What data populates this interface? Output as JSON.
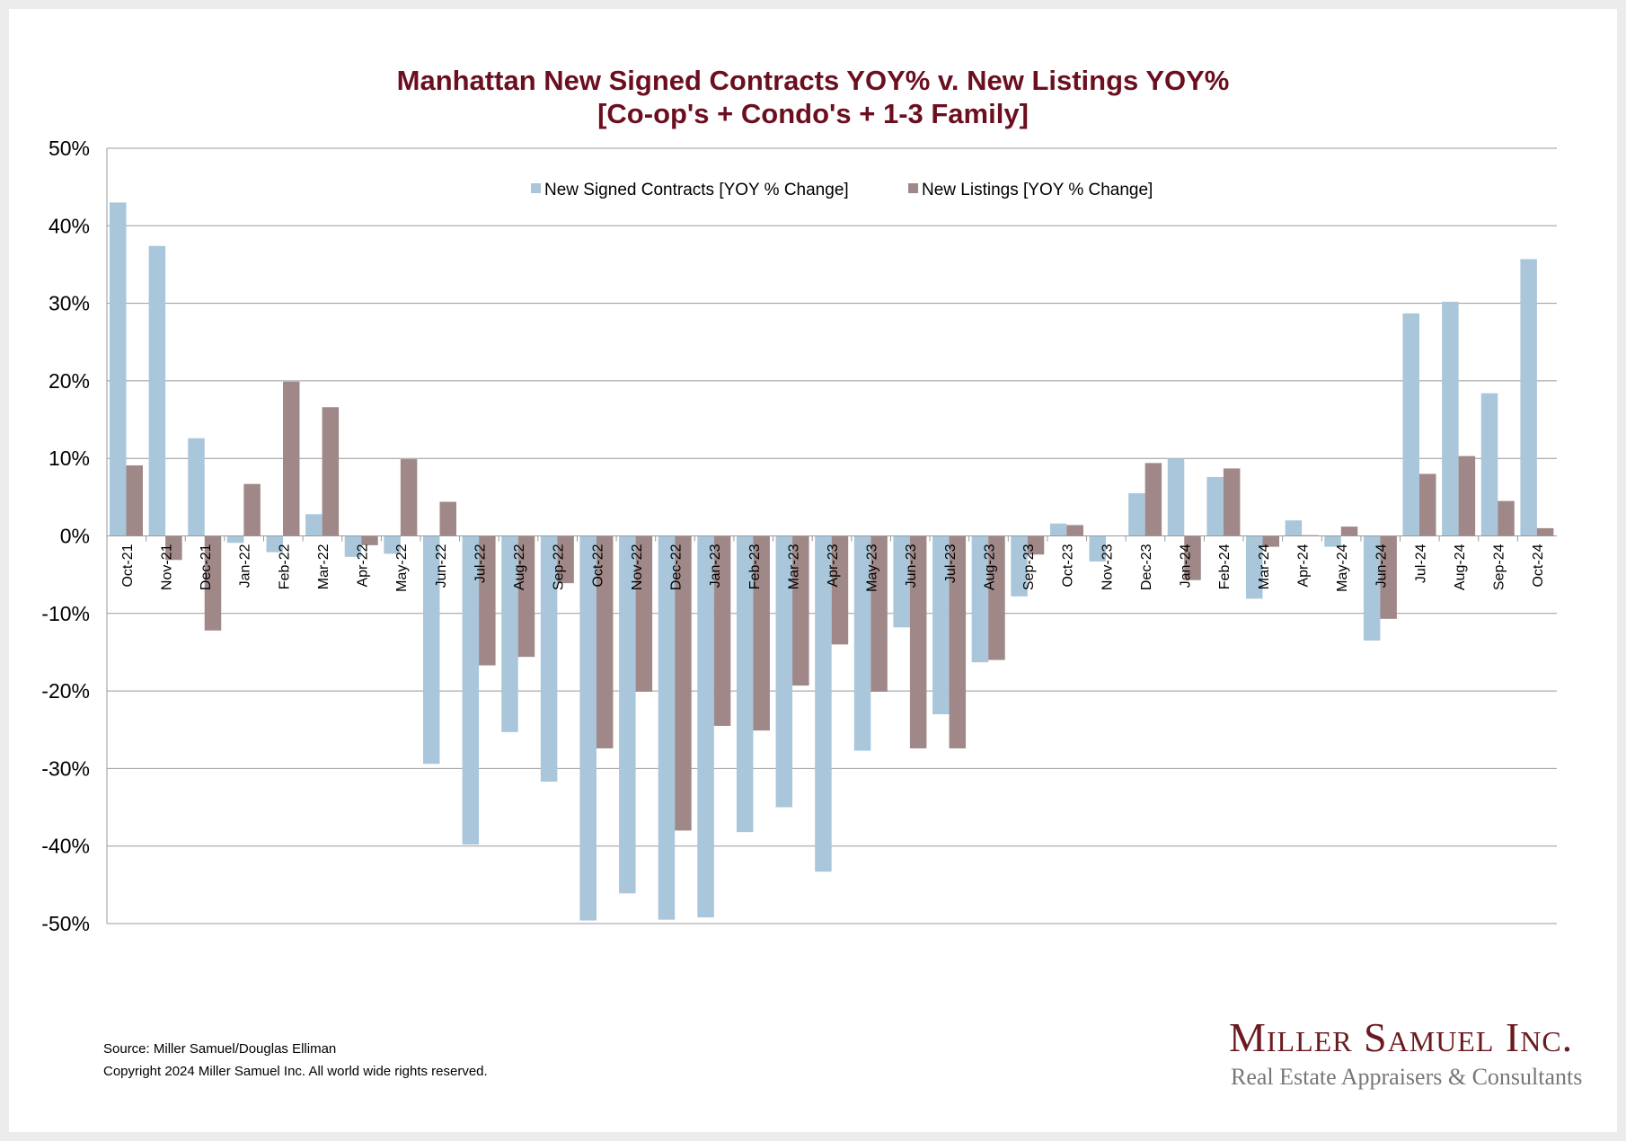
{
  "chart_data": {
    "type": "bar",
    "title": "Manhattan New Signed Contracts YOY% v. New Listings YOY%",
    "subtitle": "[Co-op's + Condo's + 1-3 Family]",
    "xlabel": "",
    "ylabel": "",
    "ylim": [
      -50,
      50
    ],
    "yticks": [
      "50%",
      "40%",
      "30%",
      "20%",
      "10%",
      "0%",
      "-10%",
      "-20%",
      "-30%",
      "-40%",
      "-50%"
    ],
    "grid": true,
    "legend_position": "top-center",
    "categories": [
      "Oct-21",
      "Nov-21",
      "Dec-21",
      "Jan-22",
      "Feb-22",
      "Mar-22",
      "Apr-22",
      "May-22",
      "Jun-22",
      "Jul-22",
      "Aug-22",
      "Sep-22",
      "Oct-22",
      "Nov-22",
      "Dec-22",
      "Jan-23",
      "Feb-23",
      "Mar-23",
      "Apr-23",
      "May-23",
      "Jun-23",
      "Jul-23",
      "Aug-23",
      "Sep-23",
      "Oct-23",
      "Nov-23",
      "Dec-23",
      "Jan-24",
      "Feb-24",
      "Mar-24",
      "Apr-24",
      "May-24",
      "Jun-24",
      "Jul-24",
      "Aug-24",
      "Sep-24",
      "Oct-24"
    ],
    "series": [
      {
        "name": "New Signed Contracts [YOY % Change]",
        "color": "#a9c6da",
        "values": [
          43.0,
          37.4,
          12.6,
          -0.9,
          -2.1,
          2.8,
          -2.7,
          -2.3,
          -29.4,
          -39.8,
          -25.3,
          -31.7,
          -49.6,
          -46.1,
          -49.5,
          -49.2,
          -38.2,
          -35.0,
          -43.3,
          -27.7,
          -11.8,
          -23.0,
          -16.3,
          -7.8,
          1.6,
          -3.3,
          5.5,
          10.0,
          7.6,
          -8.1,
          2.0,
          -1.4,
          -13.5,
          28.7,
          30.2,
          18.4,
          35.7
        ]
      },
      {
        "name": "New Listings [YOY % Change]",
        "color": "#a08888",
        "values": [
          9.1,
          -3.1,
          -12.2,
          6.7,
          19.9,
          16.6,
          -1.2,
          9.9,
          4.4,
          -16.7,
          -15.6,
          -6.1,
          -27.4,
          -20.1,
          -38.0,
          -24.5,
          -25.1,
          -19.3,
          -14.0,
          -20.1,
          -27.4,
          -27.4,
          -16.0,
          -2.4,
          1.4,
          0.0,
          9.4,
          -5.7,
          8.7,
          -1.4,
          0.1,
          1.2,
          -10.7,
          8.0,
          10.3,
          4.5,
          1.0
        ]
      }
    ]
  },
  "footer": {
    "source": "Source: Miller Samuel/Douglas Elliman",
    "copyright": "Copyright 2024 Miller Samuel Inc.  All world wide rights reserved."
  },
  "logo": {
    "name": "Miller Samuel Inc.",
    "tagline": "Real Estate Appraisers & Consultants"
  }
}
